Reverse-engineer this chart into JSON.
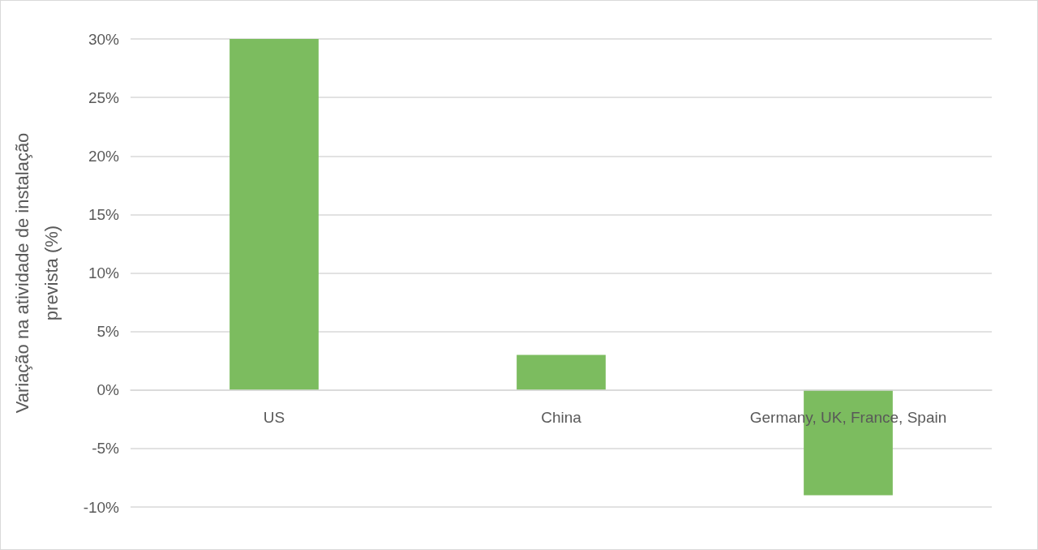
{
  "chart_data": {
    "type": "bar",
    "ylabel": "Variação na atividade de instalação prevista (%)",
    "categories": [
      "US",
      "China",
      "Germany, UK, France, Spain"
    ],
    "values": [
      30,
      3,
      -9
    ],
    "color": "#7cbc5f",
    "ylim": [
      -10,
      30
    ],
    "yticks": [
      {
        "value": -10,
        "label": "-10%"
      },
      {
        "value": -5,
        "label": "-5%"
      },
      {
        "value": 0,
        "label": "0%"
      },
      {
        "value": 5,
        "label": "5%"
      },
      {
        "value": 10,
        "label": "10%"
      },
      {
        "value": 15,
        "label": "15%"
      },
      {
        "value": 20,
        "label": "20%"
      },
      {
        "value": 25,
        "label": "25%"
      },
      {
        "value": 30,
        "label": "30%"
      }
    ],
    "grid": "y"
  }
}
